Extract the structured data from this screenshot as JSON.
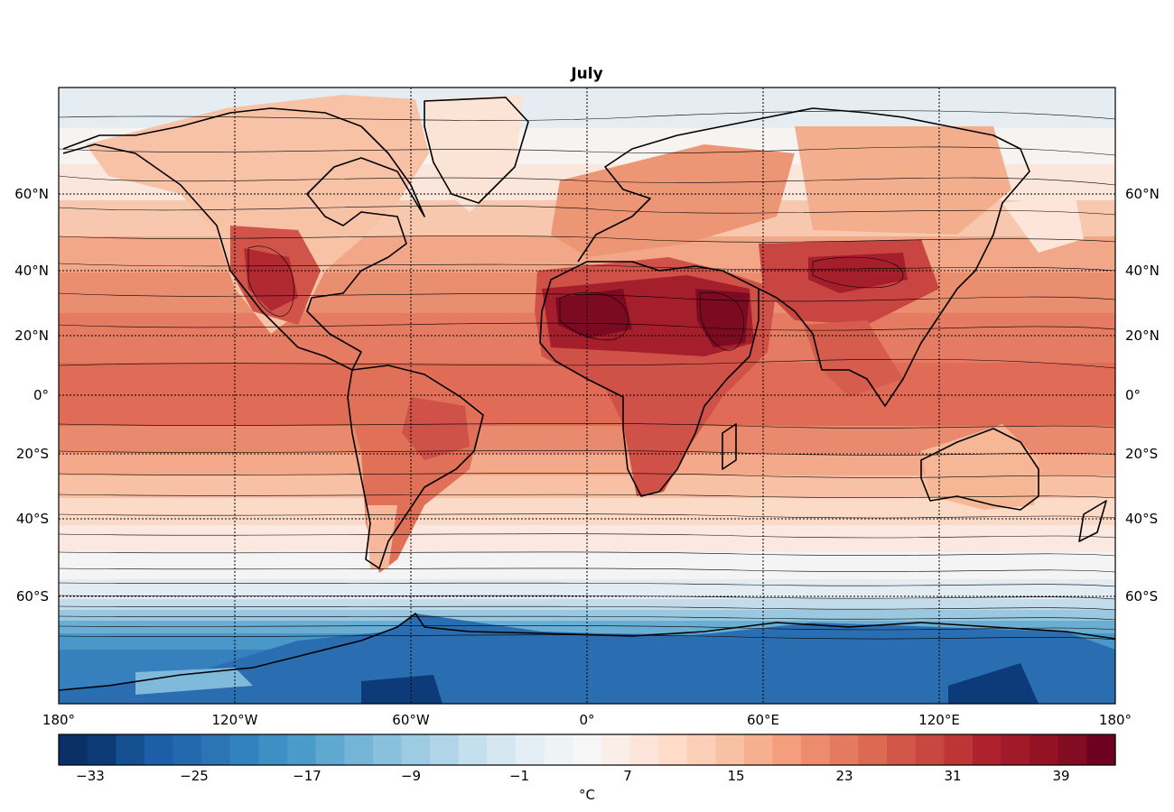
{
  "map": {
    "title": "July",
    "lat_labels": [
      "60°N",
      "40°N",
      "20°N",
      "0°",
      "20°S",
      "40°S",
      "60°S"
    ],
    "lon_labels": [
      "180°",
      "120°W",
      "60°W",
      "0°",
      "60°E",
      "120°E",
      "180°"
    ]
  },
  "colorbar": {
    "unit": "°C",
    "tick_labels": [
      "−33",
      "−25",
      "−17",
      "−9",
      "−1",
      "7",
      "15",
      "23",
      "31",
      "39"
    ],
    "colors": [
      "#0a3066",
      "#0c3a75",
      "#14508f",
      "#1c5fa6",
      "#2468ae",
      "#2c75b5",
      "#3282bd",
      "#3d8fc4",
      "#4b9bca",
      "#5fa8d0",
      "#74b4d6",
      "#89c0dd",
      "#9dcbe2",
      "#b0d5e8",
      "#c4dfed",
      "#d7e7f1",
      "#e4eef5",
      "#eef3f6",
      "#f6f6f6",
      "#faeee9",
      "#fde4da",
      "#fedcc9",
      "#fcd0b8",
      "#f9c1a4",
      "#f6b090",
      "#f39e7c",
      "#ec8c6c",
      "#e47a5f",
      "#db6954",
      "#d2574a",
      "#c84740",
      "#bd3535",
      "#ad222d",
      "#a11a2a",
      "#941224",
      "#830c22",
      "#6d011f"
    ]
  }
}
